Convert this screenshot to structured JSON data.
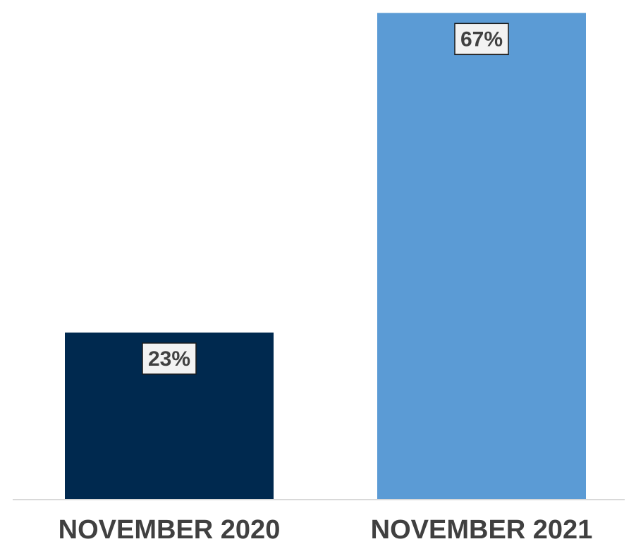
{
  "chart_data": {
    "type": "bar",
    "categories": [
      "NOVEMBER 2020",
      "NOVEMBER 2021"
    ],
    "values": [
      23,
      67
    ],
    "data_labels": [
      "23%",
      "67%"
    ],
    "bar_colors": [
      "#00294f",
      "#5b9bd5"
    ],
    "title": "",
    "xlabel": "",
    "ylabel": "",
    "ylim": [
      0,
      68
    ],
    "grid": false,
    "legend": "none",
    "axis_color": "#d9d9d9",
    "label_box_color": "#f2f2f2",
    "label_box_border": "#1a1a1a"
  }
}
